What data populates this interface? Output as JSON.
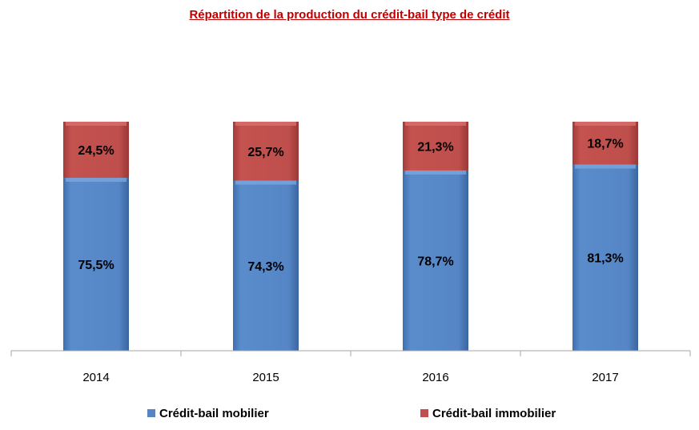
{
  "chart_data": {
    "type": "bar",
    "stacked": true,
    "title": "Répartition de la production  du crédit-bail type de crédit",
    "categories": [
      "2014",
      "2015",
      "2016",
      "2017"
    ],
    "series": [
      {
        "name": "Crédit-bail mobilier",
        "values": [
          75.5,
          74.3,
          78.7,
          81.3
        ],
        "labels": [
          "75,5%",
          "74,3%",
          "78,7%",
          "81,3%"
        ],
        "color": "#5585c5"
      },
      {
        "name": "Crédit-bail immobilier",
        "values": [
          24.5,
          25.7,
          21.3,
          18.7
        ],
        "labels": [
          "24,5%",
          "25,7%",
          "21,3%",
          "18,7%"
        ],
        "color": "#c0504d"
      }
    ],
    "ylim": [
      0,
      100
    ],
    "grid": false,
    "legend": "bottom"
  }
}
